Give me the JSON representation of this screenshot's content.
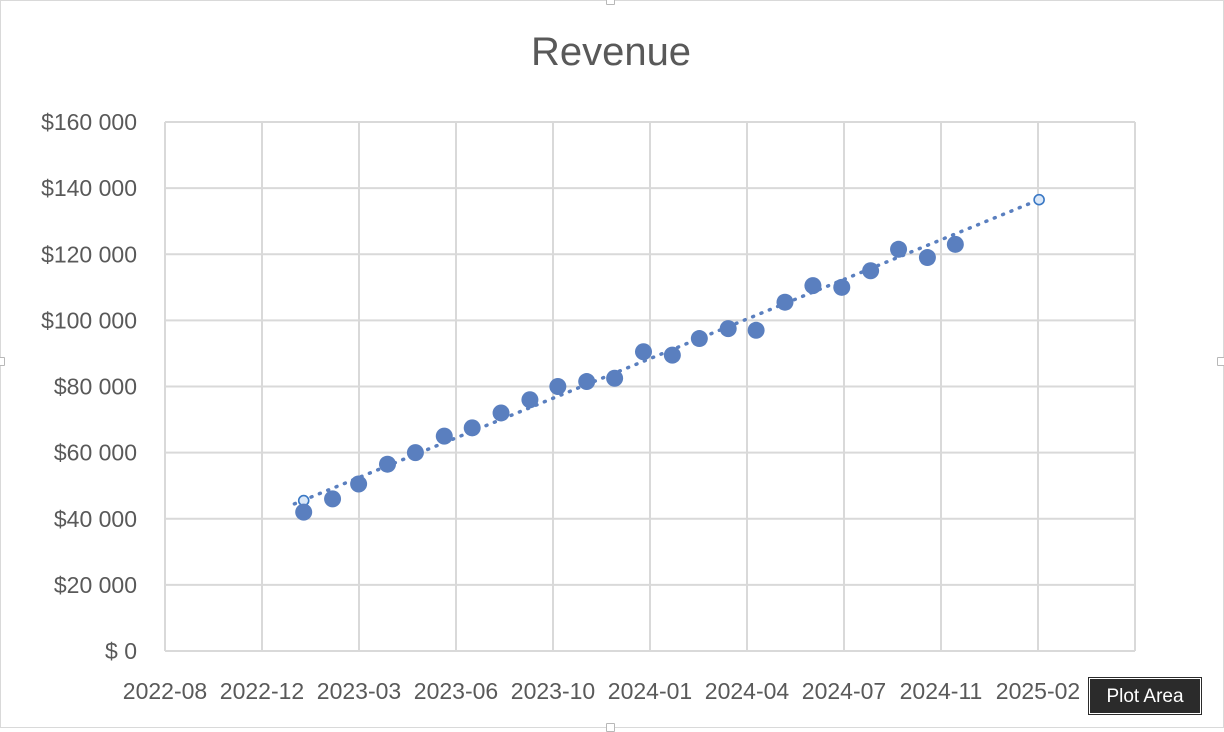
{
  "chart_data": {
    "type": "scatter",
    "title": "Revenue",
    "xlabel": "",
    "ylabel": "",
    "x_tick_labels": [
      "2022-08",
      "2022-12",
      "2023-03",
      "2023-06",
      "2023-10",
      "2024-01",
      "2024-04",
      "2024-07",
      "2024-11",
      "2025-02"
    ],
    "x_range": [
      "2022-08-05",
      "2025-06-12"
    ],
    "y_tick_labels": [
      "$ 0",
      "$20 000",
      "$40 000",
      "$60 000",
      "$80 000",
      "$100 000",
      "$120 000",
      "$140 000",
      "$160 000"
    ],
    "ylim": [
      0,
      160000
    ],
    "grid": true,
    "legend": "none",
    "marker_color": "#5a7fbf",
    "series": [
      {
        "x": [
          "2023-01-01",
          "2023-02-01",
          "2023-03-01",
          "2023-04-01",
          "2023-05-01",
          "2023-06-01",
          "2023-07-01",
          "2023-08-01",
          "2023-09-01",
          "2023-10-01",
          "2023-11-01",
          "2023-12-01",
          "2024-01-01",
          "2024-02-01",
          "2024-03-01",
          "2024-04-01",
          "2024-05-01",
          "2024-06-01",
          "2024-07-01",
          "2024-08-01",
          "2024-09-01",
          "2024-10-01",
          "2024-11-01",
          "2024-12-01"
        ],
        "y": [
          42000,
          46000,
          50500,
          56500,
          60000,
          65000,
          67500,
          72000,
          76000,
          80000,
          81500,
          82500,
          90500,
          89500,
          94500,
          97500,
          97000,
          105500,
          110500,
          110000,
          115000,
          121500,
          119000,
          123000
        ]
      }
    ],
    "trendline": {
      "type": "linear",
      "style": "dotted",
      "from": [
        "2022-12-22",
        44500
      ],
      "to": [
        "2025-03-01",
        136500
      ],
      "highlight_points": [
        {
          "x": "2023-01-01",
          "y": 45500
        },
        {
          "x": "2025-03-01",
          "y": 136500
        }
      ]
    }
  },
  "tooltip": {
    "text": "Plot Area"
  }
}
